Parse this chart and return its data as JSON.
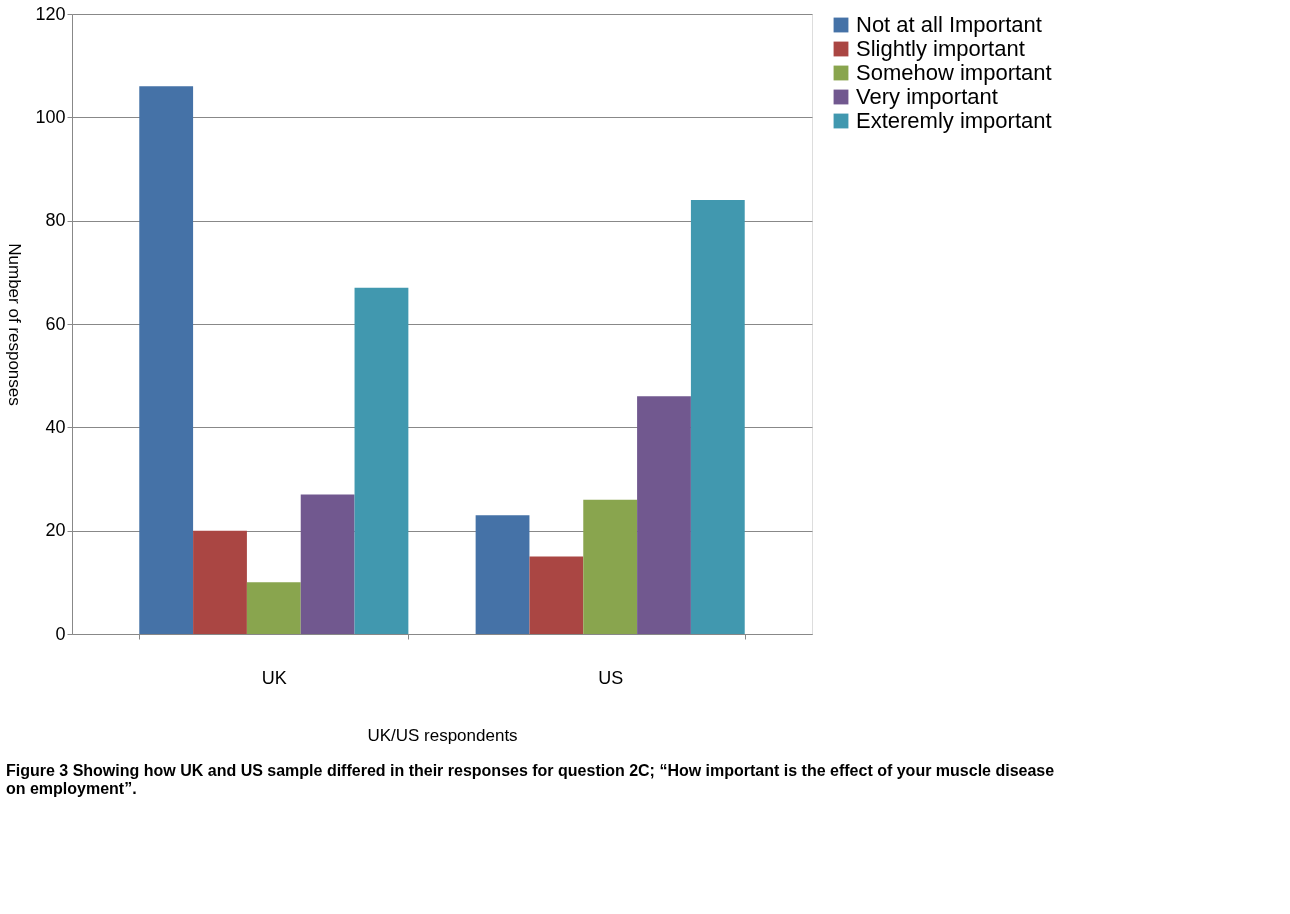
{
  "chart_data": {
    "type": "bar",
    "xlabel": "UK/US respondents",
    "ylabel": "Number of responses",
    "categories": [
      "UK",
      "US"
    ],
    "series": [
      {
        "name": "Not at all Important",
        "color": "#4572a7",
        "values": [
          106,
          23
        ]
      },
      {
        "name": "Slightly important",
        "color": "#aa4643",
        "values": [
          20,
          15
        ]
      },
      {
        "name": "Somehow important",
        "color": "#89a54e",
        "values": [
          10,
          26
        ]
      },
      {
        "name": "Very important",
        "color": "#71588f",
        "values": [
          27,
          46
        ]
      },
      {
        "name": "Exteremly important",
        "color": "#4198af",
        "values": [
          67,
          84
        ]
      }
    ],
    "ylim": [
      0,
      120
    ],
    "yticks": [
      0,
      20,
      40,
      60,
      80,
      100,
      120
    ],
    "grid": "y",
    "legend": "right",
    "annotations": [
      "Figure 3 Showing how UK and US sample differed in their responses for question 2C; “How important is the effect of your muscle disease on employment”."
    ]
  }
}
